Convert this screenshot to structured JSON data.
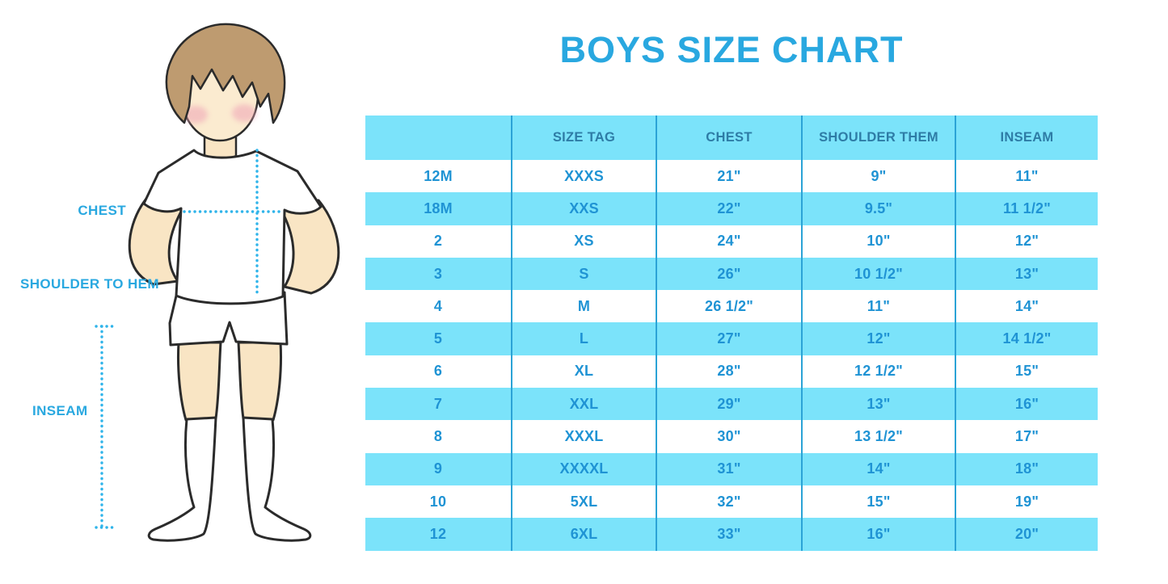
{
  "title": "BOYS SIZE CHART",
  "figure": {
    "description": "cartoon boy in white t-shirt, white shorts and white knee socks with measurement guides",
    "labels": {
      "chest": "CHEST",
      "shoulder_to_hem": "SHOULDER TO HEM",
      "inseam": "INSEAM"
    }
  },
  "chart_data": {
    "type": "table",
    "title": "BOYS SIZE CHART",
    "columns": [
      "",
      "SIZE TAG",
      "CHEST",
      "SHOULDER THEM",
      "INSEAM"
    ],
    "rows": [
      [
        "12M",
        "XXXS",
        "21\"",
        "9\"",
        "11\""
      ],
      [
        "18M",
        "XXS",
        "22\"",
        "9.5\"",
        "11 1/2\""
      ],
      [
        "2",
        "XS",
        "24\"",
        "10\"",
        "12\""
      ],
      [
        "3",
        "S",
        "26\"",
        "10 1/2\"",
        "13\""
      ],
      [
        "4",
        "M",
        "26 1/2\"",
        "11\"",
        "14\""
      ],
      [
        "5",
        "L",
        "27\"",
        "12\"",
        "14 1/2\""
      ],
      [
        "6",
        "XL",
        "28\"",
        "12 1/2\"",
        "15\""
      ],
      [
        "7",
        "XXL",
        "29\"",
        "13\"",
        "16\""
      ],
      [
        "8",
        "XXXL",
        "30\"",
        "13 1/2\"",
        "17\""
      ],
      [
        "9",
        "XXXXL",
        "31\"",
        "14\"",
        "18\""
      ],
      [
        "10",
        "5XL",
        "32\"",
        "15\"",
        "19\""
      ],
      [
        "12",
        "6XL",
        "33\"",
        "16\"",
        "20\""
      ]
    ],
    "stripe_pattern": [
      "white",
      "cyan"
    ],
    "legend_position": "none",
    "grid": "vertical-dividers-only"
  },
  "colors": {
    "title_blue": "#29A8E0",
    "header_text": "#2E7CA6",
    "cell_text": "#1F93D4",
    "row_cyan": "#7BE3FA",
    "divider": "#2BA3D6",
    "dotted_line": "#2FB4EA",
    "label_blue": "#29A8E0",
    "skin": "#F9E5C4",
    "face_skin": "#FBEBD0",
    "hair_brown": "#BE9B70",
    "cheek_pink": "#F0A9B8",
    "outline": "#2B2B2B"
  }
}
